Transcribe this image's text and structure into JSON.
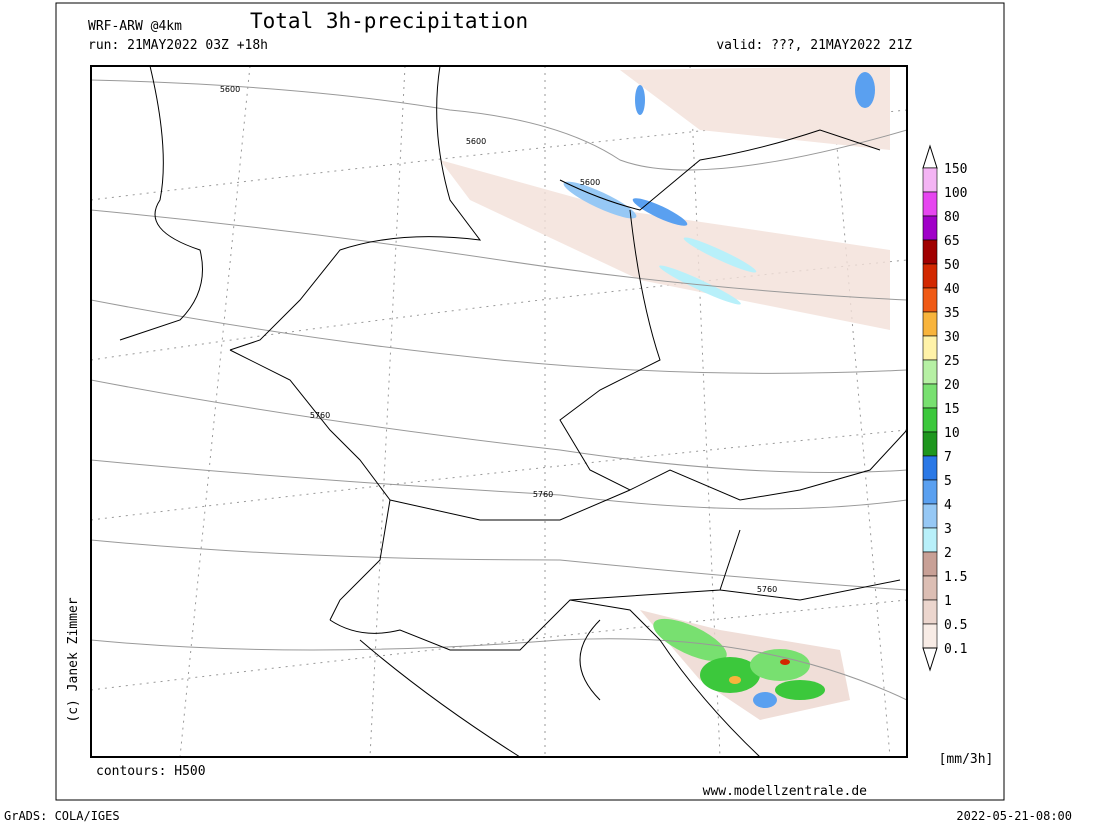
{
  "header": {
    "model": "WRF-ARW @4km",
    "title": "Total 3h-precipitation",
    "run": "run: 21MAY2022 03Z +18h",
    "valid": "valid: ???, 21MAY2022 21Z"
  },
  "map": {
    "contour_labels": [
      "5600",
      "5600",
      "5600",
      "5760",
      "5760",
      "5760"
    ],
    "credit": "(c) Janek Zimmer",
    "contours_note": "contours: H500",
    "website": "www.modellzentrale.de"
  },
  "legend": {
    "levels": [
      "150",
      "100",
      "80",
      "65",
      "50",
      "40",
      "35",
      "30",
      "25",
      "20",
      "15",
      "10",
      "7",
      "5",
      "4",
      "3",
      "2",
      "1.5",
      "1",
      "0.5",
      "0.1"
    ],
    "colors": [
      "#f4b4f4",
      "#e646f0",
      "#a000c8",
      "#a00000",
      "#d22800",
      "#f05a14",
      "#f8b43c",
      "#fff2a8",
      "#b6f0a4",
      "#78e070",
      "#3cc83c",
      "#1e961e",
      "#2a78e6",
      "#5aa0f0",
      "#96c8f5",
      "#b8f0fa",
      "#c8a096",
      "#dcbeb4",
      "#ecd6ce",
      "#f8ece6"
    ],
    "unit": "[mm/3h]"
  },
  "footer": {
    "software": "GrADS: COLA/IGES",
    "timestamp": "2022-05-21-08:00"
  }
}
